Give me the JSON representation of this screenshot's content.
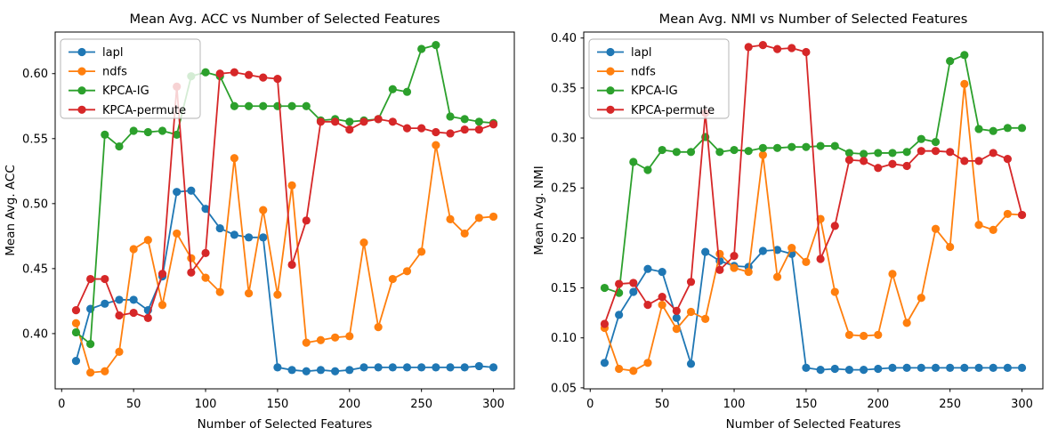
{
  "figure": {
    "background_color": "#ffffff",
    "text_color": "#000000"
  },
  "chart_data": [
    {
      "type": "line",
      "title": "Mean Avg. ACC vs Number of Selected Features",
      "xlabel": "Number of Selected Features",
      "ylabel": "Mean Avg. ACC",
      "grid": false,
      "legend_position": "upper left",
      "x": [
        10,
        20,
        30,
        40,
        50,
        60,
        70,
        80,
        90,
        100,
        110,
        120,
        130,
        140,
        150,
        160,
        170,
        180,
        190,
        200,
        210,
        220,
        230,
        240,
        250,
        260,
        270,
        280,
        290,
        300
      ],
      "xticks": [
        0,
        50,
        100,
        150,
        200,
        250,
        300
      ],
      "yticks": [
        "0.40",
        "0.45",
        "0.50",
        "0.55",
        "0.60"
      ],
      "ytick_values": [
        0.4,
        0.45,
        0.5,
        0.55,
        0.6
      ],
      "xlim": [
        -4.5,
        314.5
      ],
      "ylim": [
        0.3575,
        0.632
      ],
      "series": [
        {
          "name": "lapl",
          "color": "#1f77b4",
          "values": [
            0.379,
            0.419,
            0.423,
            0.426,
            0.426,
            0.418,
            0.444,
            0.509,
            0.51,
            0.496,
            0.481,
            0.476,
            0.474,
            0.474,
            0.374,
            0.372,
            0.371,
            0.372,
            0.371,
            0.372,
            0.374,
            0.374,
            0.374,
            0.374,
            0.374,
            0.374,
            0.374,
            0.374,
            0.375,
            0.374
          ]
        },
        {
          "name": "ndfs",
          "color": "#ff7f0e",
          "values": [
            0.408,
            0.37,
            0.371,
            0.386,
            0.465,
            0.472,
            0.422,
            0.477,
            0.458,
            0.443,
            0.432,
            0.535,
            0.431,
            0.495,
            0.43,
            0.514,
            0.393,
            0.395,
            0.397,
            0.398,
            0.47,
            0.405,
            0.442,
            0.448,
            0.463,
            0.545,
            0.488,
            0.477,
            0.489,
            0.49
          ]
        },
        {
          "name": "KPCA-IG",
          "color": "#2ca02c",
          "values": [
            0.401,
            0.392,
            0.553,
            0.544,
            0.556,
            0.555,
            0.556,
            0.553,
            0.598,
            0.601,
            0.598,
            0.575,
            0.575,
            0.575,
            0.575,
            0.575,
            0.575,
            0.564,
            0.565,
            0.563,
            0.564,
            0.565,
            0.588,
            0.586,
            0.619,
            0.622,
            0.567,
            0.565,
            0.563,
            0.562
          ]
        },
        {
          "name": "KPCA-permute",
          "color": "#d62728",
          "values": [
            0.418,
            0.442,
            0.442,
            0.414,
            0.416,
            0.412,
            0.446,
            0.59,
            0.447,
            0.462,
            0.6,
            0.601,
            0.599,
            0.597,
            0.596,
            0.453,
            0.487,
            0.563,
            0.563,
            0.557,
            0.563,
            0.565,
            0.563,
            0.558,
            0.558,
            0.555,
            0.554,
            0.557,
            0.557,
            0.561
          ]
        }
      ]
    },
    {
      "type": "line",
      "title": "Mean Avg. NMI vs Number of Selected Features",
      "xlabel": "Number of Selected Features",
      "ylabel": "Mean Avg. NMI",
      "grid": false,
      "legend_position": "upper left",
      "x": [
        10,
        20,
        30,
        40,
        50,
        60,
        70,
        80,
        90,
        100,
        110,
        120,
        130,
        140,
        150,
        160,
        170,
        180,
        190,
        200,
        210,
        220,
        230,
        240,
        250,
        260,
        270,
        280,
        290,
        300
      ],
      "xticks": [
        0,
        50,
        100,
        150,
        200,
        250,
        300
      ],
      "yticks": [
        "0.05",
        "0.10",
        "0.15",
        "0.20",
        "0.25",
        "0.30",
        "0.35",
        "0.40"
      ],
      "ytick_values": [
        0.05,
        0.1,
        0.15,
        0.2,
        0.25,
        0.3,
        0.35,
        0.4
      ],
      "xlim": [
        -4.5,
        314.5
      ],
      "ylim": [
        0.049,
        0.406
      ],
      "series": [
        {
          "name": "lapl",
          "color": "#1f77b4",
          "values": [
            0.075,
            0.123,
            0.146,
            0.169,
            0.166,
            0.12,
            0.074,
            0.186,
            0.177,
            0.172,
            0.171,
            0.187,
            0.188,
            0.184,
            0.07,
            0.068,
            0.069,
            0.068,
            0.068,
            0.069,
            0.07,
            0.07,
            0.07,
            0.07,
            0.07,
            0.07,
            0.07,
            0.07,
            0.07,
            0.07
          ]
        },
        {
          "name": "ndfs",
          "color": "#ff7f0e",
          "values": [
            0.11,
            0.069,
            0.067,
            0.075,
            0.133,
            0.109,
            0.126,
            0.119,
            0.184,
            0.17,
            0.166,
            0.283,
            0.161,
            0.19,
            0.176,
            0.219,
            0.146,
            0.103,
            0.102,
            0.103,
            0.164,
            0.115,
            0.14,
            0.209,
            0.191,
            0.354,
            0.213,
            0.208,
            0.224,
            0.223
          ]
        },
        {
          "name": "KPCA-IG",
          "color": "#2ca02c",
          "values": [
            0.15,
            0.145,
            0.276,
            0.268,
            0.288,
            0.286,
            0.286,
            0.301,
            0.286,
            0.288,
            0.287,
            0.29,
            0.29,
            0.291,
            0.291,
            0.292,
            0.292,
            0.285,
            0.284,
            0.285,
            0.285,
            0.286,
            0.299,
            0.296,
            0.377,
            0.383,
            0.309,
            0.307,
            0.31,
            0.31
          ]
        },
        {
          "name": "KPCA-permute",
          "color": "#d62728",
          "values": [
            0.114,
            0.154,
            0.155,
            0.133,
            0.141,
            0.127,
            0.156,
            0.325,
            0.168,
            0.182,
            0.391,
            0.393,
            0.389,
            0.39,
            0.386,
            0.179,
            0.212,
            0.278,
            0.277,
            0.27,
            0.274,
            0.272,
            0.287,
            0.287,
            0.286,
            0.277,
            0.277,
            0.285,
            0.279,
            0.223
          ]
        }
      ]
    }
  ]
}
